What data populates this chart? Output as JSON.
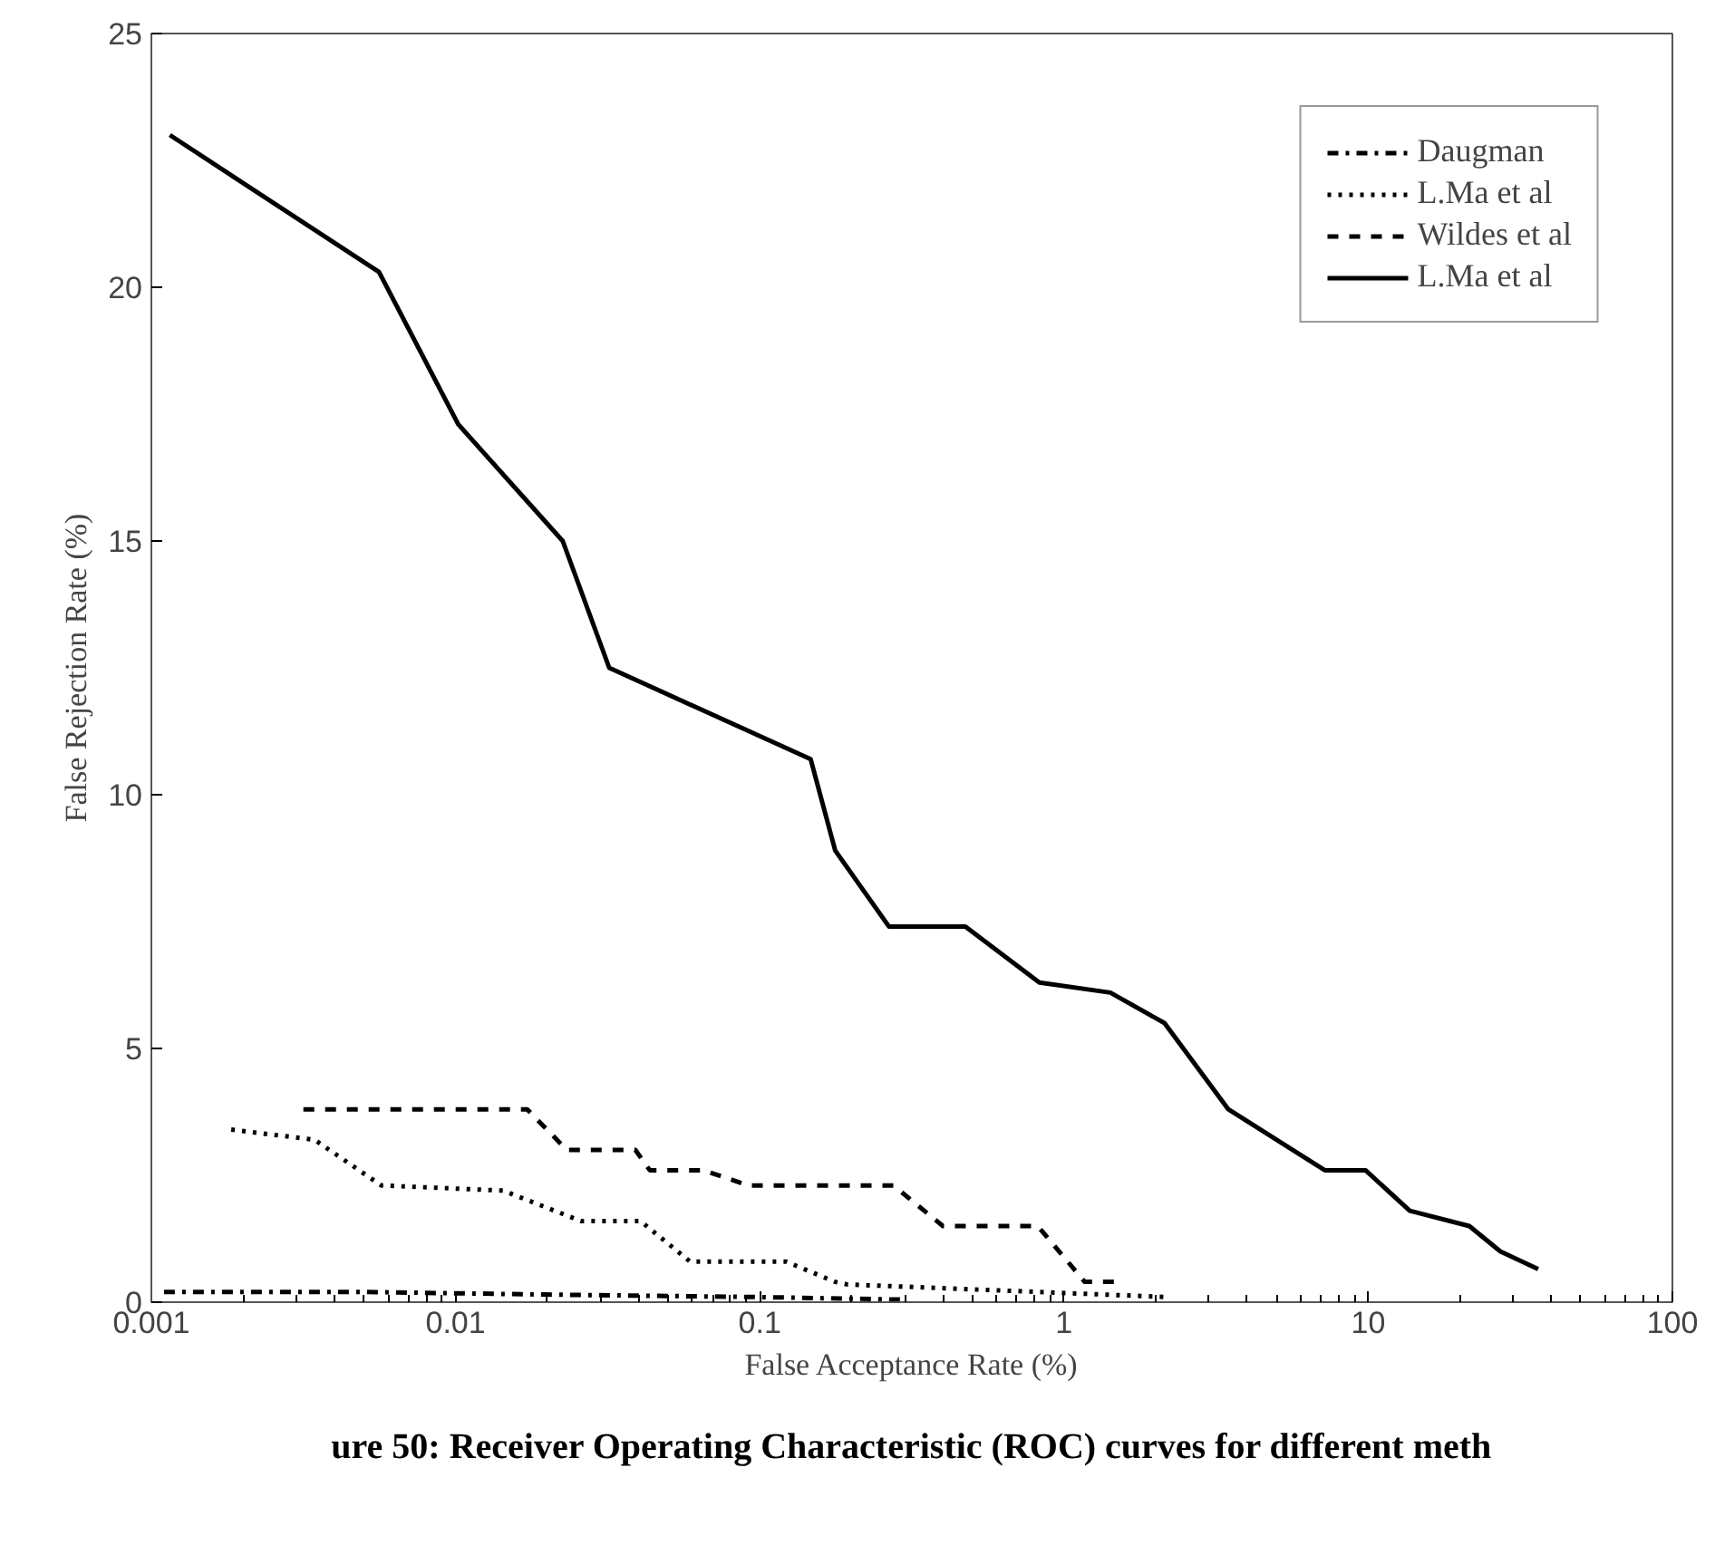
{
  "chart_data": {
    "type": "line",
    "xlabel": "False Acceptance Rate (%)",
    "ylabel": "False Rejection Rate (%)",
    "log": "x",
    "xlim": [
      0.001,
      100
    ],
    "ylim": [
      0,
      25
    ],
    "xticks": [
      0.001,
      0.01,
      0.1,
      1,
      10,
      100
    ],
    "yticks": [
      0,
      5,
      10,
      15,
      20,
      25
    ],
    "grid": false,
    "legend": "top right",
    "annotations": [
      "ure 50: Receiver Operating Characteristic (ROC) curves for different meth"
    ],
    "series": [
      {
        "name": "Daugman",
        "color": "#000000",
        "line_style": "dashdot",
        "x": [
          0.0011,
          0.005,
          0.02,
          0.1,
          0.3
        ],
        "values": [
          0.2,
          0.2,
          0.15,
          0.1,
          0.05
        ]
      },
      {
        "name": "L.Ma et al",
        "color": "#000000",
        "line_style": "dotted",
        "x": [
          0.00183,
          0.00344,
          0.0057,
          0.0143,
          0.0258,
          0.0405,
          0.059,
          0.122,
          0.177,
          0.194,
          2.2
        ],
        "values": [
          3.4,
          3.2,
          2.3,
          2.2,
          1.6,
          1.6,
          0.8,
          0.8,
          0.4,
          0.35,
          0.1
        ]
      },
      {
        "name": "Wildes et al",
        "color": "#000000",
        "line_style": "dashed",
        "x": [
          0.00316,
          0.0172,
          0.0232,
          0.039,
          0.0435,
          0.065,
          0.092,
          0.275,
          0.4,
          0.82,
          1.17,
          1.53
        ],
        "values": [
          3.8,
          3.8,
          3.0,
          3.0,
          2.6,
          2.6,
          2.3,
          2.3,
          1.5,
          1.5,
          0.4,
          0.4
        ]
      },
      {
        "name": "L.Ma et al",
        "color": "#000000",
        "line_style": "solid",
        "x": [
          0.00115,
          0.0056,
          0.0102,
          0.0225,
          0.032,
          0.147,
          0.177,
          0.266,
          0.474,
          0.83,
          1.42,
          2.14,
          3.47,
          7.2,
          9.8,
          13.7,
          21.5,
          27.2,
          36.2
        ],
        "values": [
          23.0,
          20.3,
          17.3,
          15.0,
          12.5,
          10.7,
          8.9,
          7.4,
          7.4,
          6.3,
          6.1,
          5.5,
          3.8,
          2.6,
          2.6,
          1.8,
          1.5,
          1.0,
          0.65
        ]
      }
    ]
  }
}
